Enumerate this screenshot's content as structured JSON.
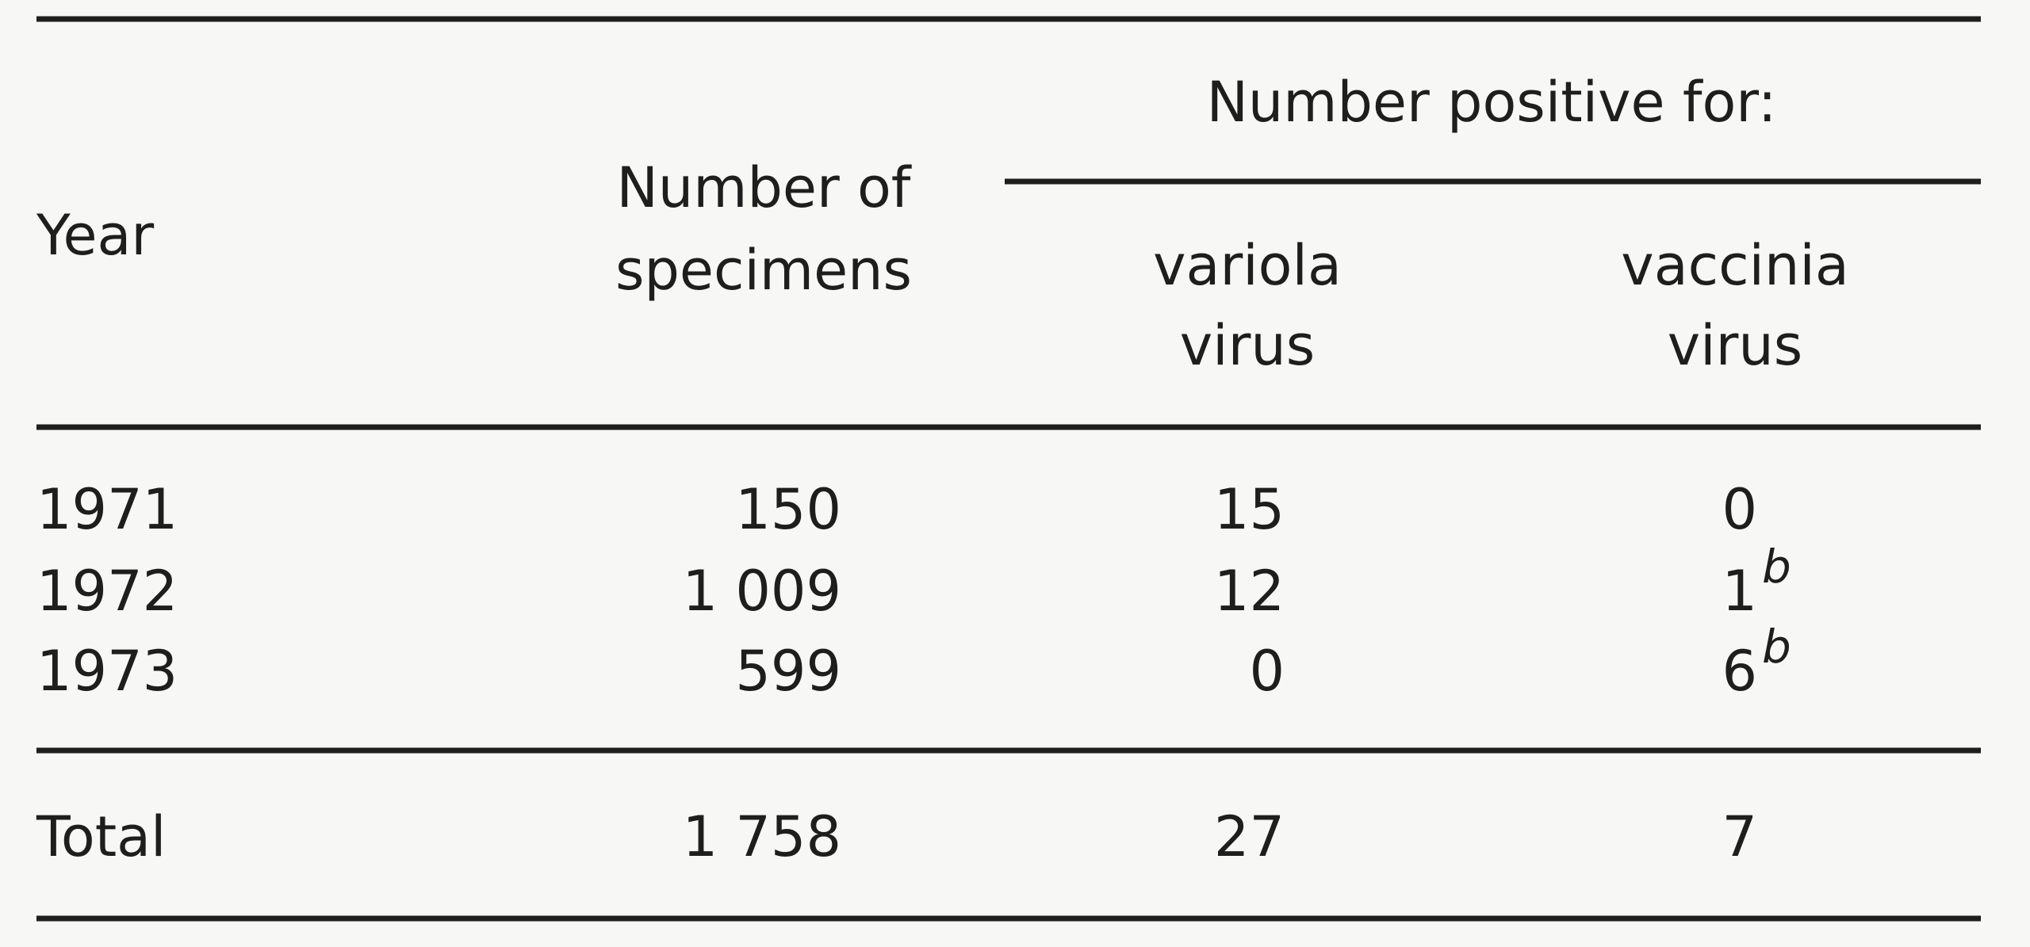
{
  "table": {
    "header": {
      "year": "Year",
      "specimens": [
        "Number of",
        "specimens"
      ],
      "positive": "Number positive for:",
      "variola": [
        "variola",
        "virus"
      ],
      "vaccinia": [
        "vaccinia",
        "virus"
      ]
    },
    "rows": [
      {
        "year": "1971",
        "specimens": "150",
        "variola": "15",
        "vaccinia": "0"
      },
      {
        "year": "1972",
        "specimens": "1 009",
        "variola": "12",
        "vaccinia": "1",
        "vaccinia_note": "b"
      },
      {
        "year": "1973",
        "specimens": "599",
        "variola": "0",
        "vaccinia": "6",
        "vaccinia_note": "b"
      }
    ],
    "total": {
      "label": "Total",
      "specimens": "1 758",
      "variola": "27",
      "vaccinia": "7"
    }
  }
}
